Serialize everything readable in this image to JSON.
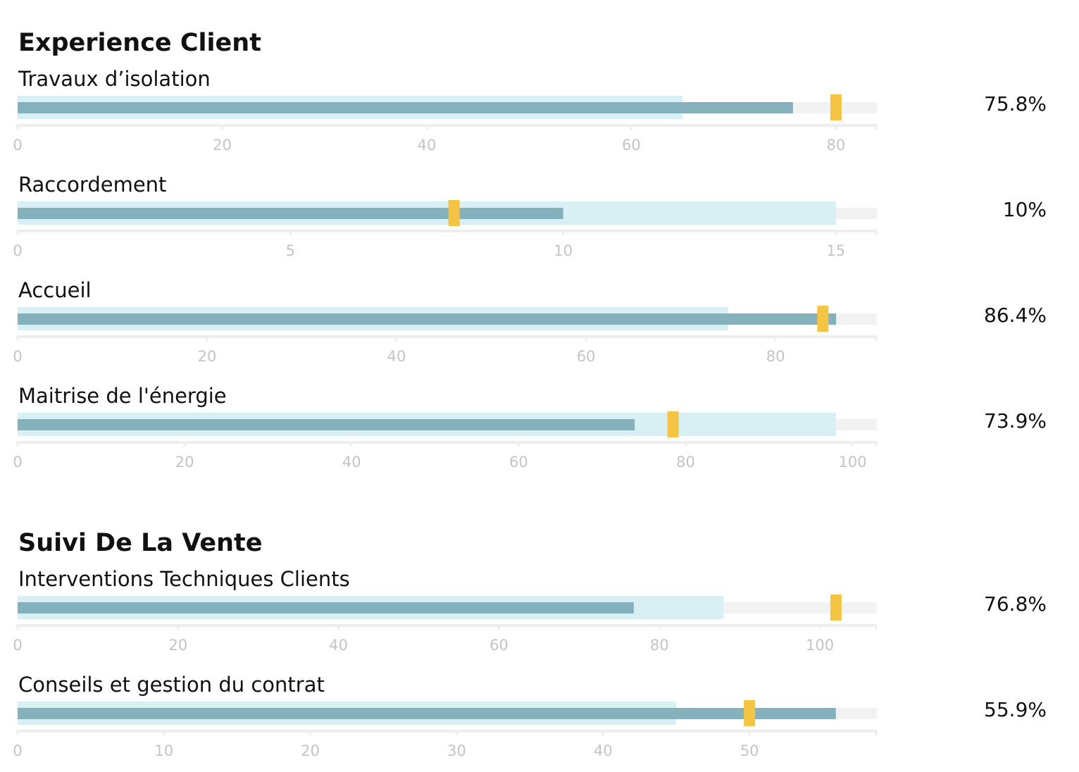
{
  "colors": {
    "background_track": "#f2f2f2",
    "range_band": "#d8eff3",
    "measure_bar": "#85b1bc",
    "target_marker": "#f4c542",
    "axis_line": "#eeeeee",
    "tick_label": "#c4c4c4"
  },
  "sections": [
    {
      "title": "Experience Client",
      "rows": [
        {
          "label": "Travaux d’isolation",
          "value_text": "75.8%",
          "chart_data": {
            "type": "bullet",
            "measure": 75.8,
            "range": 65,
            "target": 80,
            "xlim": [
              0,
              84
            ],
            "ticks": [
              0,
              20,
              40,
              60,
              80
            ]
          }
        },
        {
          "label": "Raccordement",
          "value_text": "10%",
          "chart_data": {
            "type": "bullet",
            "measure": 10,
            "range": 15,
            "target": 8,
            "xlim": [
              0,
              15.75
            ],
            "ticks": [
              0,
              5,
              10,
              15
            ]
          }
        },
        {
          "label": "Accueil",
          "value_text": "86.4%",
          "chart_data": {
            "type": "bullet",
            "measure": 86.4,
            "range": 75,
            "target": 85,
            "xlim": [
              0,
              90.7
            ],
            "ticks": [
              0,
              20,
              40,
              60,
              80
            ]
          }
        },
        {
          "label": "Maitrise de l'énergie",
          "value_text": "73.9%",
          "chart_data": {
            "type": "bullet",
            "measure": 73.9,
            "range": 98,
            "target": 78.5,
            "xlim": [
              0,
              102.9
            ],
            "ticks": [
              0,
              20,
              40,
              60,
              80,
              100
            ]
          }
        }
      ]
    },
    {
      "title": "Suivi De La Vente",
      "rows": [
        {
          "label": "Interventions Techniques Clients",
          "value_text": "76.8%",
          "chart_data": {
            "type": "bullet",
            "measure": 76.8,
            "range": 88,
            "target": 102,
            "xlim": [
              0,
              107.1
            ],
            "ticks": [
              0,
              20,
              40,
              60,
              80,
              100
            ]
          }
        },
        {
          "label": "Conseils et gestion du contrat",
          "value_text": "55.9%",
          "chart_data": {
            "type": "bullet",
            "measure": 55.9,
            "range": 45,
            "target": 50,
            "xlim": [
              0,
              58.7
            ],
            "ticks": [
              0,
              10,
              20,
              30,
              40,
              50
            ]
          }
        }
      ]
    }
  ]
}
